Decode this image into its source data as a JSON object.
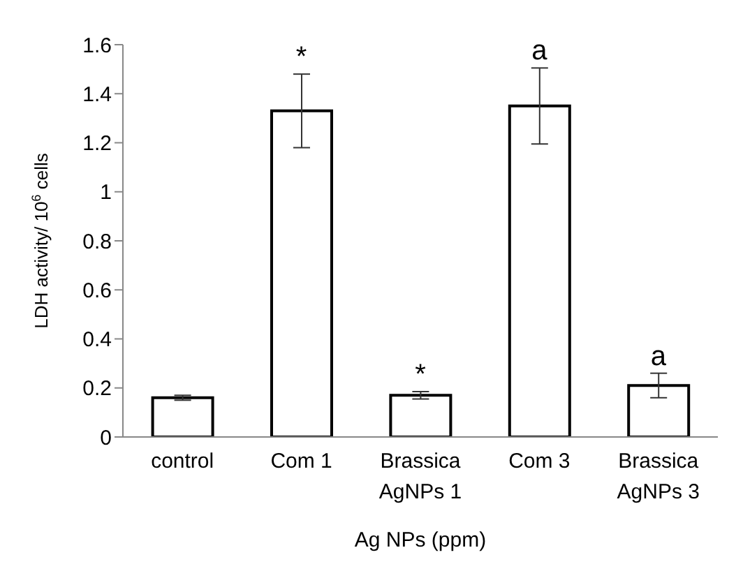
{
  "chart_data": {
    "type": "bar",
    "xlabel": "Ag NPs (ppm)",
    "ylabel": "LDH activity/ 10$^{6}$ cells",
    "categories": [
      "control",
      "Com 1",
      "Brassica\nAgNPs 1",
      "Com 3",
      "Brassica\nAgNPs 3"
    ],
    "values": [
      0.16,
      1.33,
      0.17,
      1.35,
      0.21
    ],
    "errors": [
      0.01,
      [
        1.18,
        1.48
      ],
      0.015,
      [
        1.195,
        1.505
      ],
      0.05
    ],
    "color": "#ffffff",
    "ylim": [
      0,
      1.6
    ],
    "yticks": [
      0,
      0.2,
      0.4,
      0.6,
      0.8,
      1,
      1.2,
      1.4,
      1.6
    ],
    "value_labels": [
      null,
      "*",
      "*",
      "a",
      "a"
    ]
  }
}
